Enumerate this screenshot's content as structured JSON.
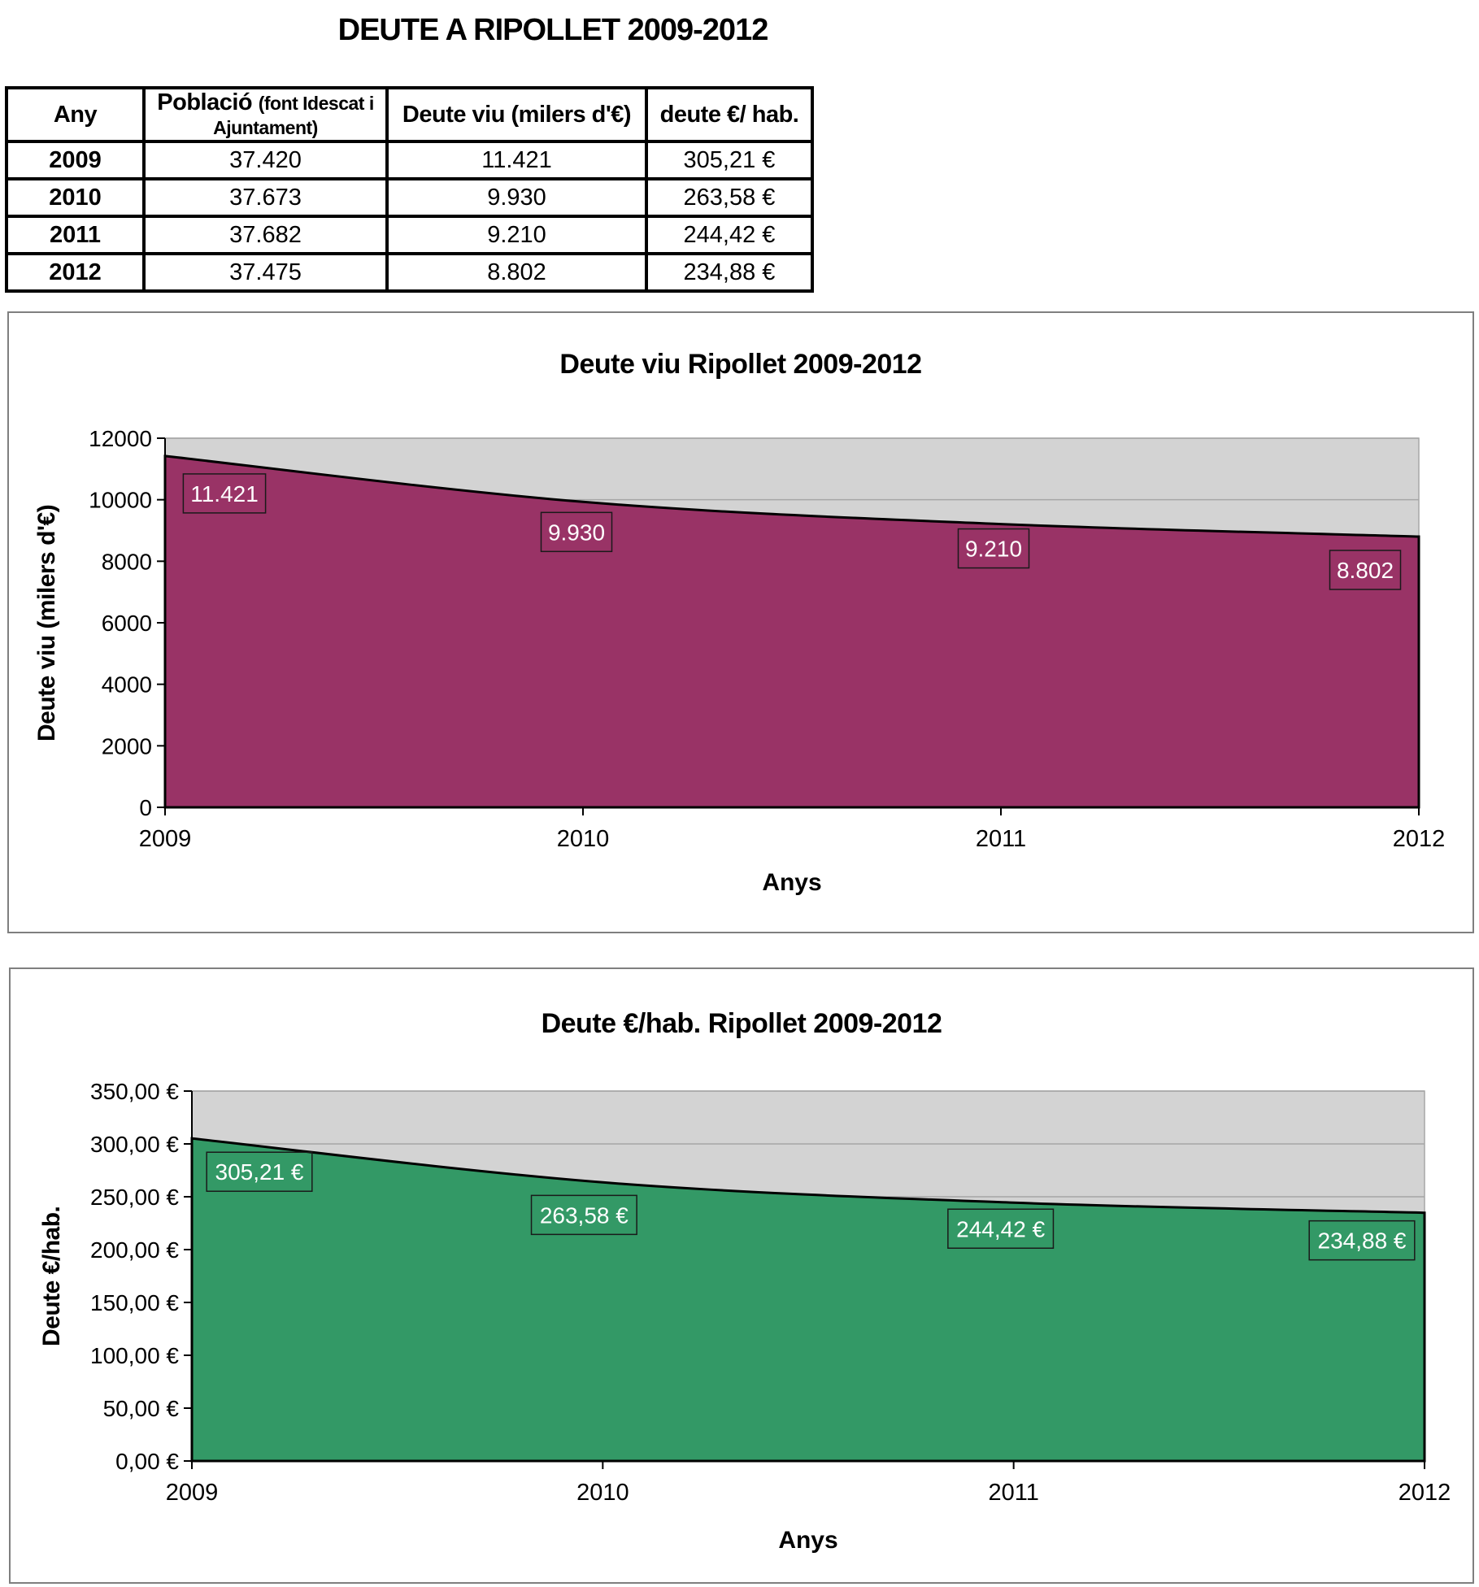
{
  "page_title": "DEUTE A RIPOLLET 2009-2012",
  "table": {
    "col_headers": {
      "any": "Any",
      "poblacio_main": "Població",
      "poblacio_note": "(font Idescat i Ajuntament)",
      "deute_viu": "Deute viu (milers d'€)",
      "deute_hab": "deute €/ hab."
    },
    "rows": [
      [
        "2009",
        "37.420",
        "11.421",
        "305,21 €"
      ],
      [
        "2010",
        "37.673",
        "9.930",
        "263,58 €"
      ],
      [
        "2011",
        "37.682",
        "9.210",
        "244,42 €"
      ],
      [
        "2012",
        "37.475",
        "8.802",
        "234,88 €"
      ]
    ]
  },
  "chart_data": [
    {
      "type": "area",
      "title": "Deute viu Ripollet 2009-2012",
      "xlabel": "Anys",
      "ylabel": "Deute viu (milers d'€)",
      "categories": [
        "2009",
        "2010",
        "2011",
        "2012"
      ],
      "values": [
        11421,
        9930,
        9210,
        8802
      ],
      "data_labels": [
        "11.421",
        "9.930",
        "9.210",
        "8.802"
      ],
      "ylim": [
        0,
        12000
      ],
      "ytick_values": [
        0,
        2000,
        4000,
        6000,
        8000,
        10000,
        12000
      ],
      "ytick_labels": [
        "0",
        "2000",
        "4000",
        "6000",
        "8000",
        "10000",
        "12000"
      ],
      "grid": true,
      "legend": "none",
      "fill_color": "#993366",
      "line_color": "#000000",
      "plot_bg": "#d3d3d3",
      "grid_color": "#a6a6a6",
      "label_text_color": "#ffffff"
    },
    {
      "type": "area",
      "title": "Deute €/hab. Ripollet 2009-2012",
      "xlabel": "Anys",
      "ylabel": "Deute €/hab.",
      "categories": [
        "2009",
        "2010",
        "2011",
        "2012"
      ],
      "values": [
        305.21,
        263.58,
        244.42,
        234.88
      ],
      "data_labels": [
        "305,21 €",
        "263,58 €",
        "244,42 €",
        "234,88 €"
      ],
      "ylim": [
        0,
        350
      ],
      "ytick_values": [
        0,
        50,
        100,
        150,
        200,
        250,
        300,
        350
      ],
      "ytick_labels": [
        "0,00 €",
        "50,00 €",
        "100,00 €",
        "150,00 €",
        "200,00 €",
        "250,00 €",
        "300,00 €",
        "350,00 €"
      ],
      "grid": true,
      "legend": "none",
      "fill_color": "#339966",
      "line_color": "#000000",
      "plot_bg": "#d3d3d3",
      "grid_color": "#a6a6a6",
      "label_text_color": "#ffffff"
    }
  ]
}
